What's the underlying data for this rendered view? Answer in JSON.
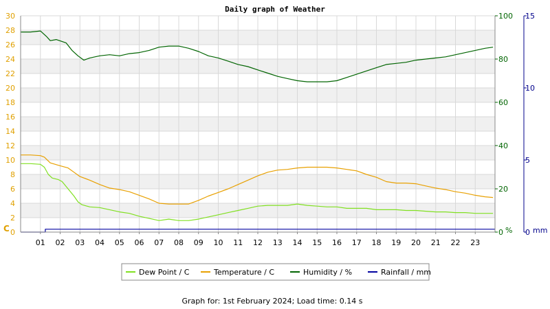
{
  "chart_data": {
    "type": "line",
    "title": "Daily graph of Weather",
    "x_tick_labels": [
      "01",
      "02",
      "03",
      "04",
      "05",
      "06",
      "07",
      "08",
      "09",
      "10",
      "11",
      "12",
      "13",
      "14",
      "15",
      "16",
      "17",
      "18",
      "19",
      "20",
      "21",
      "22",
      "23"
    ],
    "xlim": [
      0,
      24
    ],
    "left_axis": {
      "unit_label": "C",
      "lim": [
        0,
        30
      ],
      "ticks": [
        "0",
        "2",
        "4",
        "6",
        "8",
        "10",
        "12",
        "14",
        "16",
        "18",
        "20",
        "22",
        "24",
        "26",
        "28",
        "30"
      ],
      "color": "#e0a000"
    },
    "right_axis_1": {
      "unit_label": "%",
      "lim": [
        0,
        100
      ],
      "ticks": [
        "0",
        "20",
        "40",
        "60",
        "80",
        "100"
      ],
      "color": "#006400"
    },
    "right_axis_2": {
      "unit_label": "mm",
      "lim": [
        0,
        15
      ],
      "ticks": [
        "0",
        "5",
        "10",
        "15"
      ],
      "color": "#00008b"
    },
    "grid": true,
    "legend_position": "bottom-center",
    "series": [
      {
        "name": "Dew Point / C",
        "axis": "left",
        "color": "#80e020",
        "x": [
          0,
          0.5,
          1.0,
          1.2,
          1.4,
          1.6,
          1.9,
          2.1,
          2.4,
          2.7,
          2.9,
          3.1,
          3.5,
          4.0,
          4.5,
          5.0,
          5.5,
          6.0,
          6.5,
          7.0,
          7.5,
          8.0,
          8.5,
          9.0,
          9.5,
          10.0,
          10.5,
          11.0,
          11.5,
          12.0,
          12.5,
          13.0,
          13.5,
          14.0,
          14.5,
          15.0,
          15.5,
          16.0,
          16.5,
          17.0,
          17.5,
          18.0,
          18.5,
          19.0,
          19.5,
          20.0,
          20.5,
          21.0,
          21.5,
          22.0,
          22.5,
          23.0,
          23.5,
          23.9
        ],
        "y": [
          9.5,
          9.5,
          9.4,
          9.0,
          8.0,
          7.5,
          7.3,
          7.0,
          6.0,
          5.0,
          4.2,
          3.8,
          3.5,
          3.4,
          3.1,
          2.8,
          2.6,
          2.2,
          1.9,
          1.6,
          1.8,
          1.6,
          1.6,
          1.8,
          2.1,
          2.4,
          2.7,
          3.0,
          3.3,
          3.6,
          3.7,
          3.7,
          3.7,
          3.9,
          3.7,
          3.6,
          3.5,
          3.5,
          3.3,
          3.3,
          3.3,
          3.1,
          3.1,
          3.1,
          3.0,
          3.0,
          2.9,
          2.8,
          2.8,
          2.7,
          2.7,
          2.6,
          2.6,
          2.6
        ]
      },
      {
        "name": "Temperature / C",
        "axis": "left",
        "color": "#e8a000",
        "x": [
          0,
          0.5,
          1.0,
          1.2,
          1.5,
          2.0,
          2.4,
          2.7,
          3.0,
          3.5,
          4.0,
          4.5,
          5.0,
          5.5,
          6.0,
          6.5,
          7.0,
          7.5,
          8.0,
          8.5,
          9.0,
          9.5,
          10.0,
          10.5,
          11.0,
          11.5,
          12.0,
          12.5,
          13.0,
          13.5,
          14.0,
          14.5,
          15.0,
          15.5,
          16.0,
          16.5,
          17.0,
          17.5,
          18.0,
          18.5,
          19.0,
          19.5,
          20.0,
          20.5,
          21.0,
          21.5,
          22.0,
          22.5,
          23.0,
          23.5,
          23.9
        ],
        "y": [
          10.7,
          10.7,
          10.6,
          10.4,
          9.6,
          9.2,
          8.9,
          8.3,
          7.7,
          7.2,
          6.6,
          6.1,
          5.9,
          5.6,
          5.1,
          4.6,
          4.0,
          3.9,
          3.9,
          3.9,
          4.4,
          5.0,
          5.5,
          6.0,
          6.6,
          7.2,
          7.8,
          8.3,
          8.6,
          8.7,
          8.9,
          9.0,
          9.0,
          9.0,
          8.9,
          8.7,
          8.5,
          8.0,
          7.6,
          7.0,
          6.8,
          6.8,
          6.7,
          6.4,
          6.1,
          5.9,
          5.6,
          5.4,
          5.1,
          4.9,
          4.8
        ]
      },
      {
        "name": "Humidity / %",
        "axis": "right_1",
        "color": "#006400",
        "x": [
          0,
          0.5,
          1.0,
          1.3,
          1.5,
          1.8,
          2.3,
          2.6,
          2.9,
          3.2,
          3.5,
          4.0,
          4.5,
          5.0,
          5.5,
          6.0,
          6.5,
          7.0,
          7.5,
          8.0,
          8.5,
          9.0,
          9.5,
          10.0,
          10.5,
          11.0,
          11.5,
          12.0,
          12.5,
          13.0,
          13.5,
          14.0,
          14.5,
          15.0,
          15.5,
          16.0,
          16.5,
          17.0,
          17.5,
          18.0,
          18.5,
          19.0,
          19.5,
          20.0,
          20.5,
          21.0,
          21.5,
          22.0,
          22.5,
          23.0,
          23.5,
          23.9
        ],
        "y": [
          92.5,
          92.5,
          93.0,
          90.5,
          88.5,
          89.0,
          87.5,
          84.0,
          81.5,
          79.5,
          80.5,
          81.5,
          82.0,
          81.5,
          82.5,
          83.0,
          84.0,
          85.5,
          86.0,
          86.0,
          85.0,
          83.5,
          81.5,
          80.5,
          79.0,
          77.5,
          76.5,
          75.0,
          73.5,
          72.0,
          71.0,
          70.0,
          69.5,
          69.5,
          69.5,
          70.0,
          71.5,
          73.0,
          74.5,
          76.0,
          77.5,
          78.0,
          78.5,
          79.5,
          80.0,
          80.5,
          81.0,
          82.0,
          83.0,
          84.0,
          85.0,
          85.5
        ]
      },
      {
        "name": "Rainfall / mm",
        "axis": "right_2",
        "color": "#0000a0",
        "x": [
          0,
          1.25,
          1.25,
          24
        ],
        "y": [
          0,
          0,
          0.2,
          0.2
        ]
      }
    ]
  },
  "footer": {
    "caption": "Graph for: 1st February 2024; Load time: 0.14 s"
  }
}
